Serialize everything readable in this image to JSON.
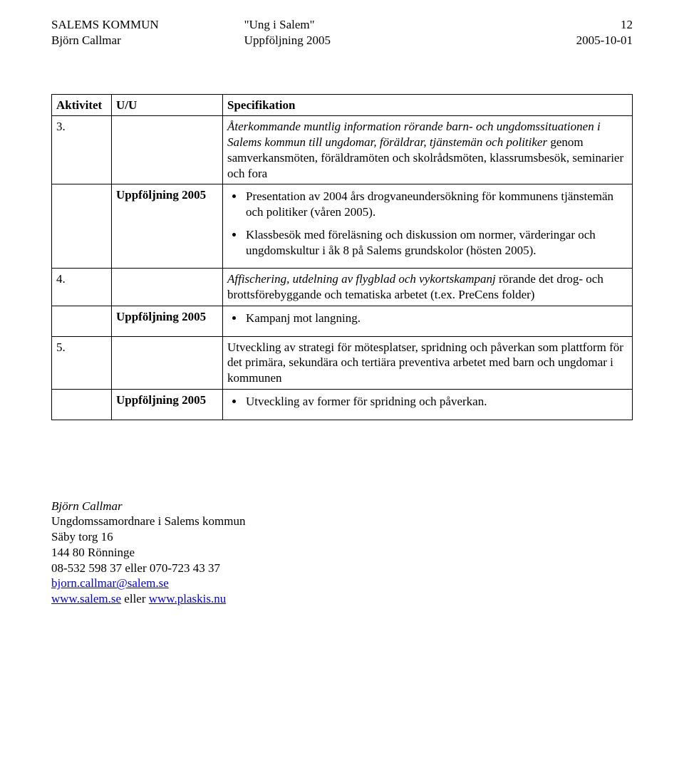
{
  "header": {
    "left_line1": "SALEMS KOMMUN",
    "left_line2": "Björn Callmar",
    "center_line1": "\"Ung i Salem\"",
    "center_line2": "Uppföljning 2005",
    "right_line1": "12",
    "right_line2": "2005-10-01"
  },
  "table": {
    "head": {
      "c1": "Aktivitet",
      "c2": "U/U",
      "c3": "Specifikation"
    },
    "rows": [
      {
        "c1": "3.",
        "c2": "",
        "c3_html": "<span class='italic'>Återkommande muntlig information rörande barn- och ungdomssituationen i Salems kommun till ungdomar, föräldrar, tjänstemän och politiker</span> genom samverkansmöten, föräldramöten och skolrådsmöten, klassrumsbesök, seminarier och fora"
      },
      {
        "c1": "",
        "c2": "<span class='bold'>Uppföljning 2005</span>",
        "c3_bullets": [
          "Presentation av 2004 års drogvaneundersökning för kommunens tjänstemän och politiker (våren 2005).",
          "Klassbesök med föreläsning och diskussion om normer, värderingar och ungdomskultur i åk 8 på Salems grundskolor (hösten 2005)."
        ]
      },
      {
        "c1": "4.",
        "c2": "",
        "c3_html": "<span class='italic'>Affischering, utdelning av flygblad och vykortskampanj</span> rörande det drog- och brottsförebyggande och tematiska arbetet (t.ex. PreCens folder)"
      },
      {
        "c1": "",
        "c2": "<span class='bold'>Uppföljning 2005</span>",
        "c3_bullets": [
          "Kampanj mot langning."
        ]
      },
      {
        "c1": "5.",
        "c2": "",
        "c3_html": "Utveckling av strategi för mötesplatser, spridning och påverkan som plattform för det primära, sekundära och tertiära preventiva arbetet med barn och ungdomar i kommunen"
      },
      {
        "c1": "",
        "c2": "<span class='bold'>Uppföljning 2005</span>",
        "c3_bullets": [
          "Utveckling av former för spridning och påverkan."
        ]
      }
    ]
  },
  "contact": {
    "name_italic": "Björn Callmar",
    "line2": "Ungdomssamordnare i Salems kommun",
    "line3": "Säby torg 16",
    "line4": "144 80 Rönninge",
    "line5": "08-532 598 37 eller 070-723 43 37",
    "email": "bjorn.callmar@salem.se",
    "web1": "www.salem.se",
    "sep": " eller ",
    "web2": "www.plaskis.nu"
  },
  "style": {
    "font_family": "Times New Roman",
    "font_size_pt": 13,
    "text_color": "#000000",
    "background_color": "#ffffff",
    "link_color": "#0000ee",
    "border_color": "#000000"
  }
}
